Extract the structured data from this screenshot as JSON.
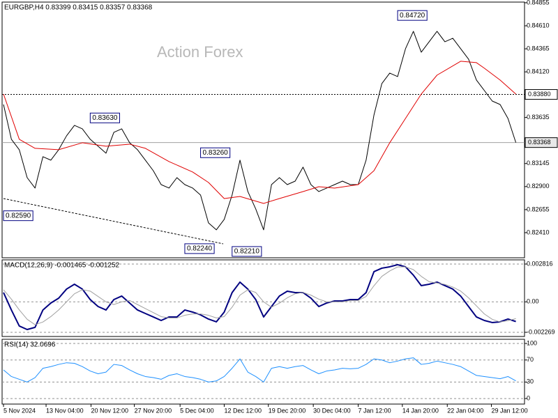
{
  "chart_data": [
    {
      "type": "line",
      "title": "EURGBP,H4  0.83399 0.83415 0.83357 0.83368",
      "watermark": "Action Forex",
      "xlim": [
        -0.18,
        66.1
      ],
      "ylim": [
        0.82143,
        0.84862
      ],
      "yticks": [
        0.84855,
        {
          "value": 0.8461,
          "label": "0.84610"
        },
        0.84365,
        {
          "value": 0.8412,
          "label": "0.84120"
        },
        0.83635,
        0.83145,
        {
          "value": 0.829,
          "label": "0.82900"
        },
        0.82655,
        {
          "value": 0.8241,
          "label": "0.82410"
        }
      ],
      "levels": [
        {
          "value": 0.8388,
          "label": "0.83880",
          "color": "#000000",
          "dash": true
        },
        {
          "value": 0.83368,
          "label": "0.83368",
          "color": "#a0a0a0",
          "dash": false
        }
      ],
      "annotations": [
        {
          "value": 0.8472,
          "label": "0.84720",
          "x": 50
        },
        {
          "value": 0.8363,
          "label": "0.83630",
          "x": 11
        },
        {
          "value": 0.8326,
          "label": "0.83260",
          "x": 25
        },
        {
          "value": 0.8259,
          "label": "0.82590",
          "x": 0
        },
        {
          "value": 0.8224,
          "label": "0.82240",
          "x": 23
        },
        {
          "value": 0.8221,
          "label": "0.82210",
          "x": 29
        }
      ],
      "series": [
        {
          "color": "#000000",
          "width": 1,
          "values": [
            0.83773,
            0.83403,
            0.83292,
            0.82995,
            0.82884,
            0.83218,
            0.83181,
            0.83292,
            0.8344,
            0.83551,
            0.83514,
            0.83403,
            0.83329,
            0.83255,
            0.83477,
            0.83514,
            0.83366,
            0.83292,
            0.83181,
            0.83069,
            0.82921,
            0.82884,
            0.82995,
            0.82921,
            0.82884,
            0.8281,
            0.82514,
            0.8244,
            0.82551,
            0.8281,
            0.83181,
            0.82847,
            0.82662,
            0.8244,
            0.82921,
            0.82995,
            0.82921,
            0.82958,
            0.83107,
            0.82921,
            0.82847,
            0.82884,
            0.82921,
            0.82958,
            0.82921,
            0.82921,
            0.83181,
            0.83662,
            0.83996,
            0.84107,
            0.8407,
            0.84366,
            0.84551,
            0.84329,
            0.8444,
            0.84551,
            0.8444,
            0.84477,
            0.84366,
            0.84255,
            0.84033,
            0.83922,
            0.8381,
            0.83773,
            0.83625,
            0.83368
          ]
        },
        {
          "color": "#e00000",
          "width": 1,
          "x": [
            0,
            2,
            4,
            7,
            10,
            13,
            16,
            18,
            21,
            24,
            26,
            28,
            30,
            33,
            35,
            38,
            40,
            42,
            45,
            47,
            49,
            51,
            53,
            55,
            58,
            60,
            61,
            63,
            65
          ],
          "values": [
            0.83884,
            0.83403,
            0.83307,
            0.83292,
            0.83366,
            0.83329,
            0.83351,
            0.83307,
            0.83166,
            0.83055,
            0.82944,
            0.82773,
            0.82795,
            0.82721,
            0.82773,
            0.82847,
            0.82899,
            0.82884,
            0.82921,
            0.83069,
            0.83366,
            0.83625,
            0.83884,
            0.84085,
            0.84233,
            0.84218,
            0.84159,
            0.84033,
            0.83884
          ]
        }
      ]
    },
    {
      "type": "line",
      "title": "MACD(12,26,9) -0.001465 -0.001252",
      "xlim": [
        -0.18,
        66.1
      ],
      "ylim": [
        -0.00258,
        0.003127
      ],
      "grid": true,
      "yticks": [
        0.002816,
        {
          "value": 0,
          "label": "0.00"
        },
        -0.002269
      ],
      "series": [
        {
          "color": "#000080",
          "width": 2,
          "values": [
            0.00069,
            -0.000607,
            -0.0018,
            -0.00206,
            -0.0019,
            -0.000607,
            -8.8e-05,
            0.000275,
            0.00095,
            0.00131,
            0.00095,
            0.000171,
            -0.000348,
            -0.000607,
            0.000171,
            0.000431,
            -8.8e-05,
            -0.000607,
            -0.000867,
            -0.001126,
            -0.001386,
            -0.001126,
            -0.001126,
            -0.000607,
            -0.000763,
            -0.000971,
            -0.001282,
            -0.00149,
            -0.000763,
            0.00069,
            0.001469,
            0.00095,
            0.000171,
            -0.001126,
            -0.000348,
            0.000431,
            0.000794,
            0.00069,
            0.00069,
            0.000275,
            -0.000348,
            -8.8e-05,
            6.7e-05,
            6.7e-05,
            0.000171,
            0.000171,
            0.00069,
            0.002247,
            0.002507,
            0.00261,
            0.002766,
            0.00261,
            0.001988,
            0.001209,
            0.00131,
            0.001469,
            0.001209,
            0.00095,
            0.000431,
            -0.000348,
            -0.001126,
            -0.001386,
            -0.001541,
            -0.00149,
            -0.001282,
            -0.001465
          ]
        },
        {
          "color": "#a0a0a0",
          "width": 1,
          "values": [
            0.0009,
            0.0002,
            -0.0006,
            -0.0013,
            -0.0017,
            -0.0015,
            -0.0011,
            -0.0006,
            0.0,
            0.0006,
            0.0009,
            0.0008,
            0.0004,
            0.0,
            -0.0002,
            0.0,
            0.0001,
            -0.0002,
            -0.0005,
            -0.0008,
            -0.0011,
            -0.0012,
            -0.0012,
            -0.001,
            -0.0009,
            -0.0009,
            -0.001,
            -0.0012,
            -0.0011,
            -0.0004,
            0.0005,
            0.0009,
            0.0007,
            0.0,
            -0.0004,
            -0.0001,
            0.0003,
            0.0006,
            0.0007,
            0.0005,
            0.0002,
            0.0,
            0.0,
            0.0,
            0.0001,
            0.0001,
            0.0004,
            0.0012,
            0.0019,
            0.0023,
            0.0026,
            0.0026,
            0.0024,
            0.0019,
            0.0015,
            0.0014,
            0.0013,
            0.0011,
            0.0008,
            0.0003,
            -0.0003,
            -0.0009,
            -0.0013,
            -0.0015,
            -0.0014,
            -0.001252
          ]
        }
      ]
    },
    {
      "type": "line",
      "title": "RSI(14) 32.0696",
      "xlim": [
        -0.18,
        66.1
      ],
      "ylim": [
        -10,
        107.6
      ],
      "grid": true,
      "yticks": [
        100,
        70,
        30,
        0
      ],
      "xticks": [
        {
          "value": 0,
          "label": "5 Nov 2024"
        },
        {
          "value": 5.4,
          "label": "13 Nov 04:00"
        },
        {
          "value": 11.1,
          "label": "20 Nov 12:00"
        },
        {
          "value": 16.6,
          "label": "27 Nov 20:00"
        },
        {
          "value": 22.4,
          "label": "5 Dec 04:00"
        },
        {
          "value": 28,
          "label": "12 Dec 12:00"
        },
        {
          "value": 33.6,
          "label": "19 Dec 20:00"
        },
        {
          "value": 39.3,
          "label": "30 Dec 04:00"
        },
        {
          "value": 45,
          "label": "7 Jan 12:00"
        },
        {
          "value": 50.6,
          "label": "14 Jan 20:00"
        },
        {
          "value": 56.3,
          "label": "22 Jan 04:00"
        },
        {
          "value": 61.9,
          "label": "29 Jan 12:00"
        }
      ],
      "series": [
        {
          "color": "#1e90ff",
          "width": 1,
          "values": [
            52,
            40,
            35,
            30,
            38,
            55,
            58,
            62,
            65,
            64,
            58,
            50,
            45,
            48,
            62,
            60,
            52,
            45,
            40,
            38,
            35,
            42,
            45,
            40,
            38,
            35,
            30,
            32,
            40,
            55,
            72,
            48,
            40,
            30,
            55,
            58,
            55,
            58,
            60,
            52,
            45,
            50,
            52,
            55,
            54,
            55,
            62,
            72,
            70,
            65,
            68,
            72,
            74,
            62,
            64,
            68,
            65,
            62,
            58,
            50,
            42,
            40,
            38,
            36,
            40,
            32.0696
          ]
        }
      ]
    }
  ]
}
